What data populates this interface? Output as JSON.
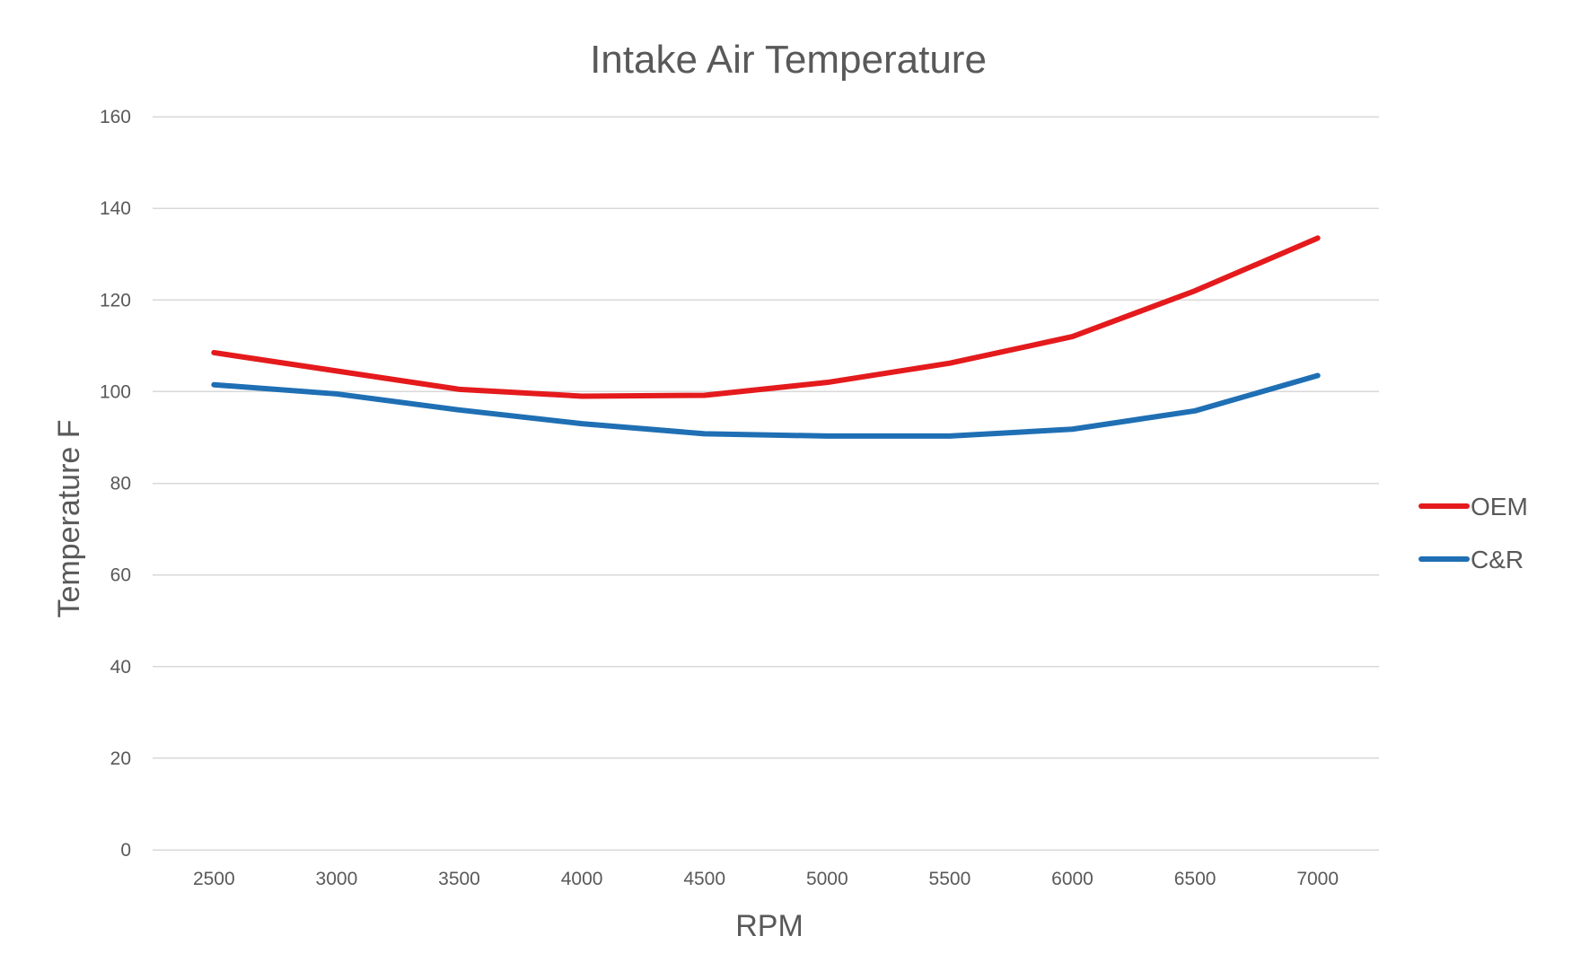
{
  "chart_data": {
    "type": "line",
    "title": "Intake Air Temperature",
    "xlabel": "RPM",
    "ylabel": "Temperature F",
    "ylim": [
      0,
      160
    ],
    "y_ticks": [
      "0",
      "20",
      "40",
      "60",
      "80",
      "100",
      "120",
      "140",
      "160"
    ],
    "categories": [
      "2500",
      "3000",
      "3500",
      "4000",
      "4500",
      "5000",
      "5500",
      "6000",
      "6500",
      "7000"
    ],
    "grid": true,
    "legend_position": "right",
    "series": [
      {
        "name": "OEM",
        "color": "#e41a1c",
        "values": [
          108.5,
          104.5,
          100.5,
          99,
          99.2,
          102,
          106.2,
          112,
          122,
          133.5
        ]
      },
      {
        "name": "C&R",
        "color": "#1f6fb4",
        "values": [
          101.5,
          99.5,
          96,
          93,
          90.8,
          90.3,
          90.3,
          91.8,
          95.8,
          103.5
        ]
      }
    ]
  }
}
